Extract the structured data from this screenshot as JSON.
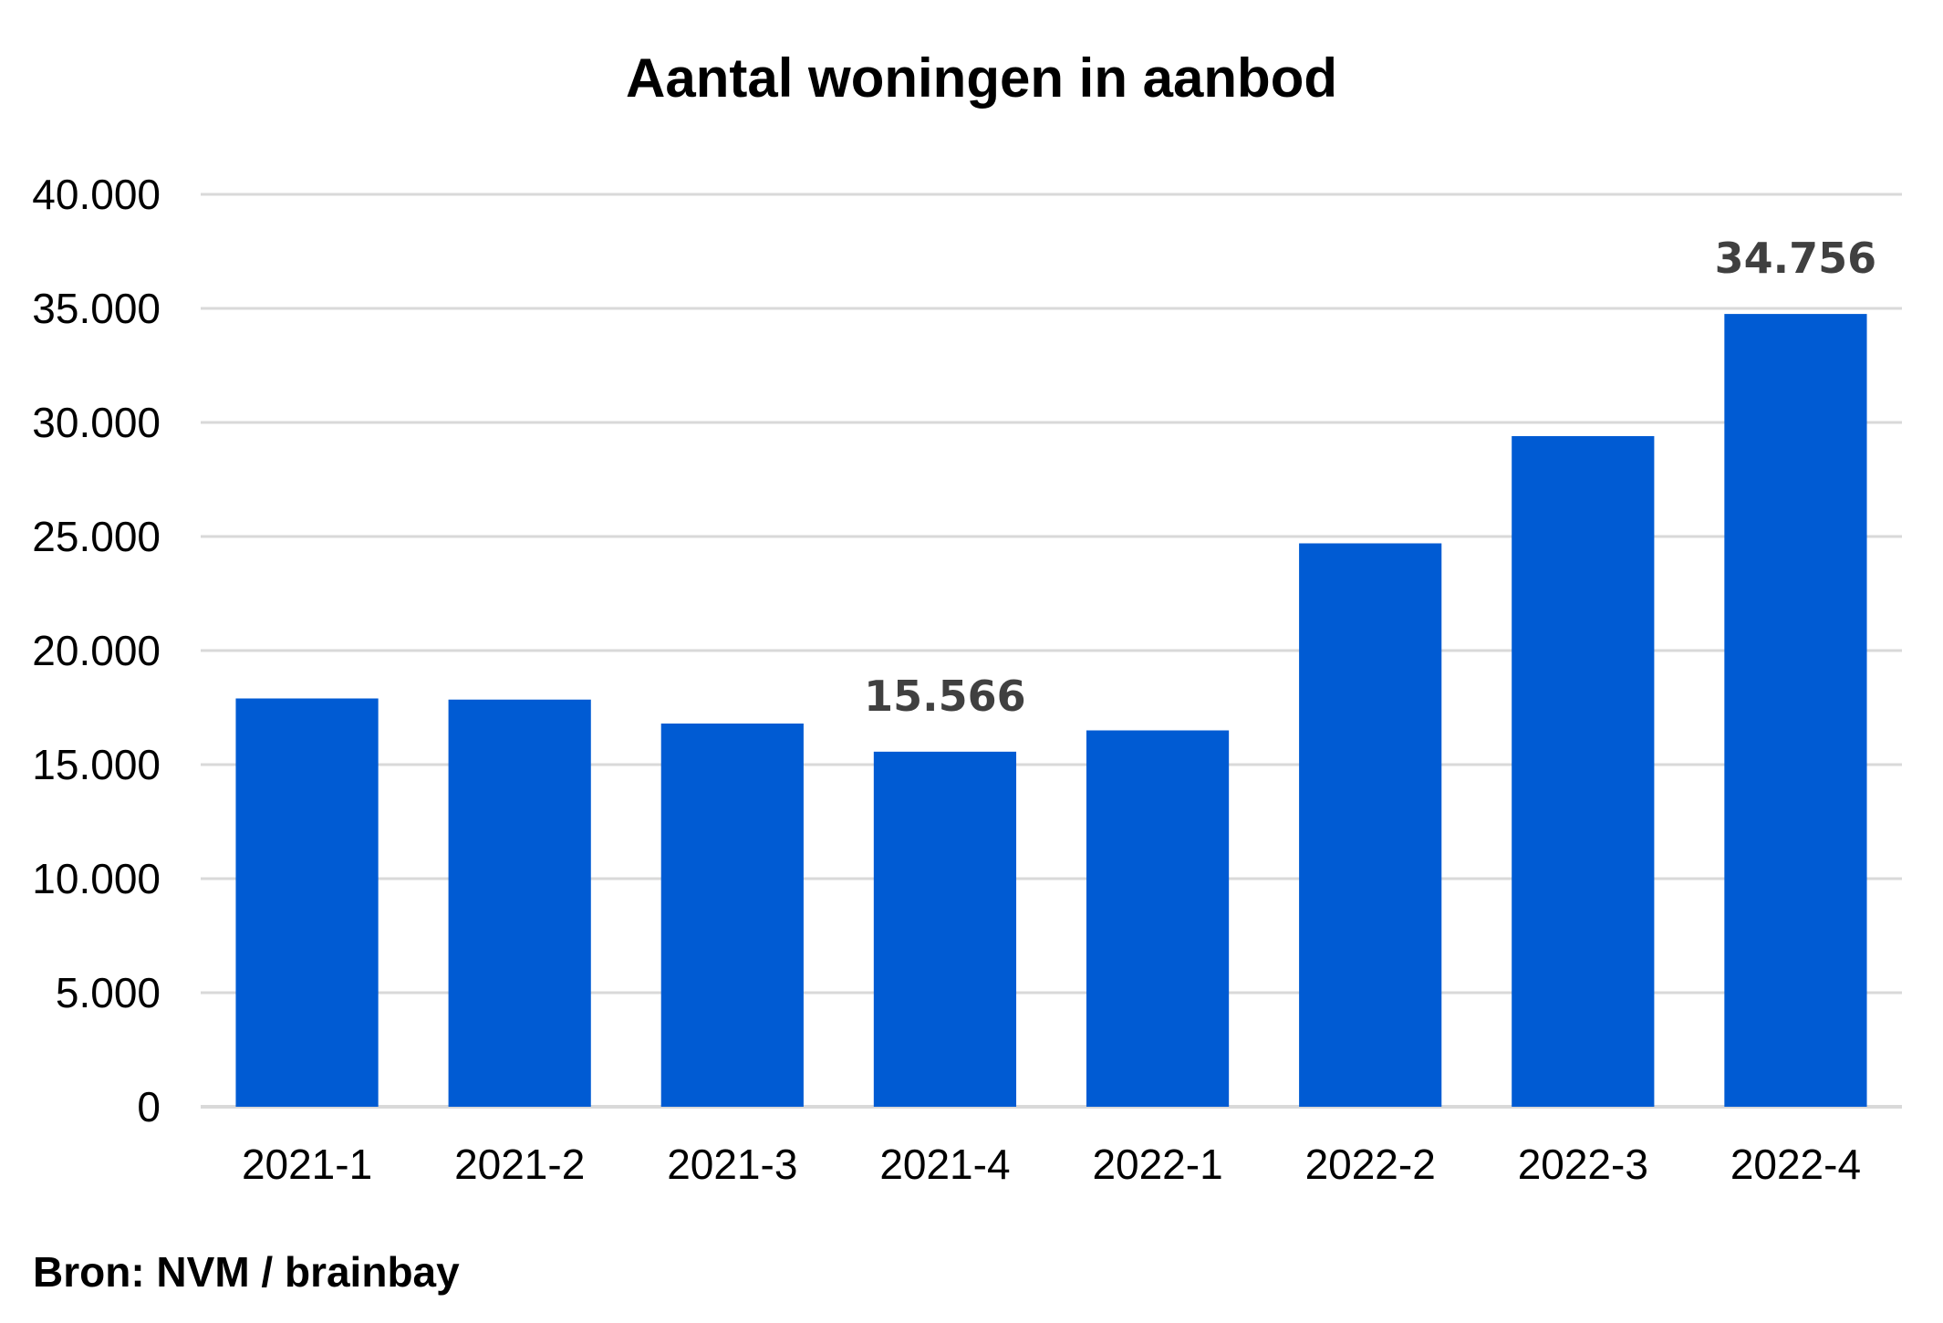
{
  "chart_data": {
    "type": "bar",
    "title": "Aantal woningen in aanbod",
    "categories": [
      "2021-1",
      "2021-2",
      "2021-3",
      "2021-4",
      "2022-1",
      "2022-2",
      "2022-3",
      "2022-4"
    ],
    "values": [
      17900,
      17850,
      16800,
      15566,
      16500,
      24700,
      29400,
      34756
    ],
    "ylim": [
      0,
      40000
    ],
    "yticks": [
      0,
      5000,
      10000,
      15000,
      20000,
      25000,
      30000,
      35000,
      40000
    ],
    "ytick_labels": [
      "0",
      "5.000",
      "10.000",
      "15.000",
      "20.000",
      "25.000",
      "30.000",
      "35.000",
      "40.000"
    ],
    "data_labels": [
      {
        "index": 3,
        "text": "15.566"
      },
      {
        "index": 7,
        "text": "34.756"
      }
    ],
    "grid": true,
    "legend": "none",
    "bar_color": "#005BD3",
    "grid_color": "#D9D9D9"
  },
  "source": "Bron:  NVM / brainbay"
}
